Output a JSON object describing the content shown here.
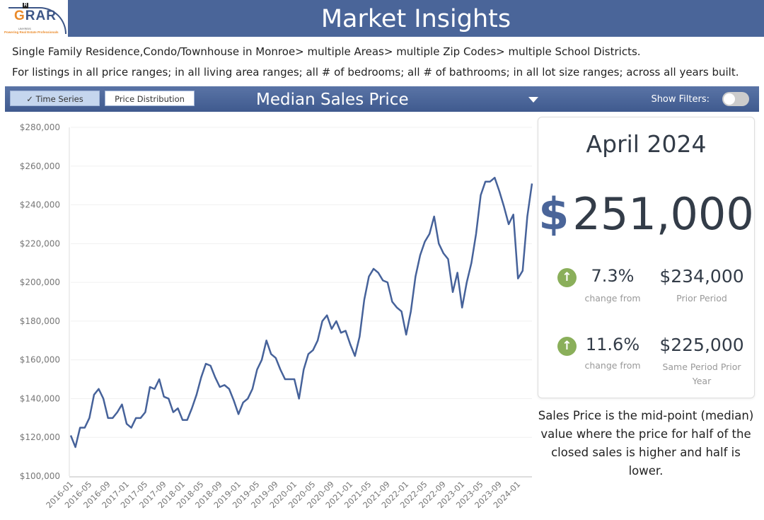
{
  "logo": {
    "text_main": "GRAR",
    "text_sub": "On behalf of UNYREIS",
    "tagline": "Powering Real Estate Professionals",
    "badge": "R"
  },
  "header": {
    "title": "Market Insights"
  },
  "filters_summary": {
    "line1": "Single Family Residence,Condo/Townhouse in Monroe> multiple Areas> multiple Zip Codes> multiple School Districts.",
    "line2": "For listings in all price ranges; in all living area ranges; all # of bedrooms; all # of bathrooms; in all lot size ranges; across all years built."
  },
  "toolbar": {
    "time_series_label": "Time Series",
    "price_distribution_label": "Price Distribution",
    "measure_selected": "Median Sales Price",
    "show_filters_label": "Show Filters:",
    "show_filters_on": false,
    "accent": "#4a6599"
  },
  "summary": {
    "period": "April 2024",
    "currency_symbol": "$",
    "value": "251,000",
    "change1": {
      "pct": "7.3%",
      "label": "change from",
      "amount": "$234,000",
      "amount_label": "Prior Period",
      "direction": "up"
    },
    "change2": {
      "pct": "11.6%",
      "label": "change from",
      "amount": "$225,000",
      "amount_label": "Same Period Prior Year",
      "direction": "up"
    },
    "up_color": "#8aaf5a"
  },
  "description": "Sales Price is the mid-point (median) value where the price for half of the closed sales is higher and half is lower.",
  "chart_data": {
    "type": "line",
    "title": "",
    "xlabel": "",
    "ylabel": "",
    "ylim": [
      100000,
      280000
    ],
    "y_ticks": [
      "$100,000",
      "$120,000",
      "$140,000",
      "$160,000",
      "$180,000",
      "$200,000",
      "$220,000",
      "$240,000",
      "$260,000",
      "$280,000"
    ],
    "x_start": "2016-01",
    "x_end": "2024-04",
    "x_tick_labels": [
      "2016-01",
      "2016-05",
      "2016-09",
      "2017-01",
      "2017-05",
      "2017-09",
      "2018-01",
      "2018-05",
      "2018-09",
      "2019-01",
      "2019-05",
      "2019-09",
      "2020-01",
      "2020-05",
      "2020-09",
      "2021-01",
      "2021-05",
      "2021-09",
      "2022-01",
      "2022-05",
      "2022-09",
      "2023-01",
      "2023-05",
      "2023-09",
      "2024-01"
    ],
    "grid": "horizontal",
    "line_color": "#46629a",
    "series": [
      {
        "values": [
          121000,
          115000,
          125000,
          125000,
          130000,
          142000,
          145000,
          140000,
          130000,
          130000,
          133000,
          137000,
          127000,
          125000,
          130000,
          130000,
          133000,
          146000,
          145000,
          150000,
          141000,
          140000,
          133000,
          135000,
          129000,
          129000,
          135000,
          142000,
          151000,
          158000,
          157000,
          151000,
          146000,
          147000,
          145000,
          139000,
          132000,
          138000,
          140000,
          145000,
          155000,
          160000,
          170000,
          163000,
          161000,
          155000,
          150000,
          150000,
          150000,
          140000,
          155000,
          163000,
          165000,
          170000,
          180000,
          183000,
          176000,
          180000,
          174000,
          175000,
          168000,
          162000,
          172000,
          191000,
          203000,
          207000,
          205000,
          201000,
          200000,
          190000,
          187000,
          185000,
          173000,
          185000,
          203000,
          214000,
          221000,
          225000,
          234000,
          220000,
          215000,
          212000,
          195000,
          205000,
          187000,
          200000,
          210000,
          225000,
          245000,
          252000,
          252000,
          254000,
          247000,
          239000,
          230000,
          235000,
          202000,
          206000,
          234000,
          251000
        ]
      }
    ]
  }
}
